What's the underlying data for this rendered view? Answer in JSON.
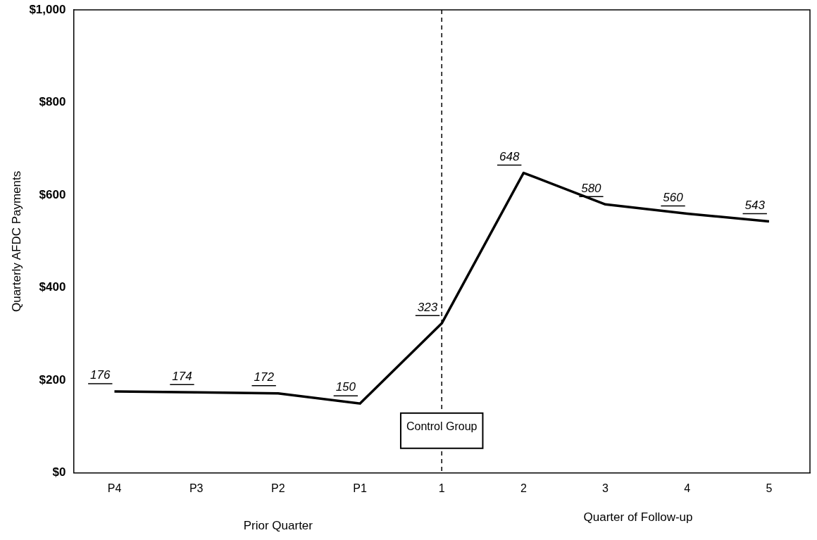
{
  "chart_data": {
    "type": "line",
    "ylabel": "Quarterly AFDC Payments",
    "xlabel": "Prior Quarter",
    "categories": [
      "P4",
      "P3",
      "P2",
      "P1",
      "1",
      "2",
      "3",
      "4",
      "5"
    ],
    "series": [
      {
        "color": "#000000",
        "values": [
          176,
          174,
          172,
          150,
          323,
          648,
          580,
          560,
          543
        ]
      }
    ],
    "ylim": [
      0,
      1000
    ],
    "yticks": [
      {
        "value": 0,
        "label": "$0"
      },
      {
        "value": 200,
        "label": "$200"
      },
      {
        "value": 400,
        "label": "$400"
      },
      {
        "value": 600,
        "label": "$600"
      },
      {
        "value": 800,
        "label": "$800"
      },
      {
        "value": 1000,
        "label": "$1,000"
      }
    ],
    "ref_lines": [
      {
        "axis": "x",
        "value": "1",
        "label": "Control Group",
        "line_style": "dashed",
        "color": "#000000"
      }
    ],
    "annotations": [
      "Quarter of Follow-up"
    ],
    "data_labels": true,
    "grid": false,
    "legend": false,
    "marker": "none",
    "line_style": "solid"
  }
}
